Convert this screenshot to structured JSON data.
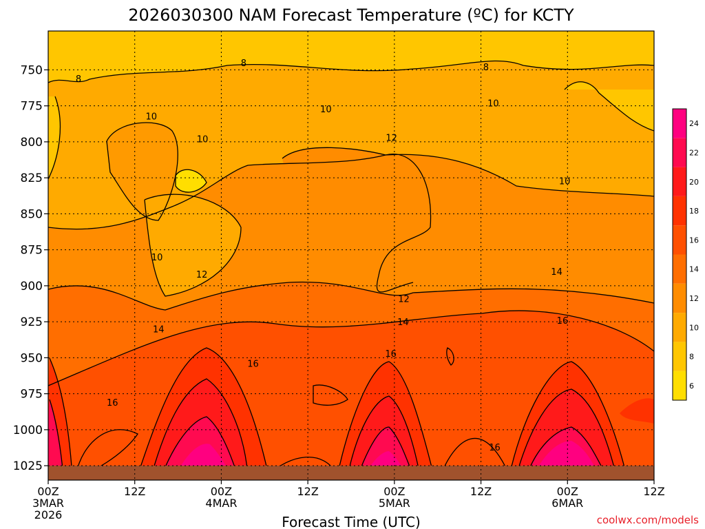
{
  "chart_data": {
    "type": "heatmap",
    "title": "2026030300 NAM Forecast Temperature (ºC) for KCTY",
    "xlabel": "Forecast Time (UTC)",
    "credit": "coolwx.com/models",
    "y_ticks": [
      "750",
      "775",
      "800",
      "825",
      "850",
      "875",
      "900",
      "925",
      "950",
      "975",
      "1000",
      "1025"
    ],
    "y_values": [
      750,
      775,
      800,
      825,
      850,
      875,
      900,
      925,
      950,
      975,
      1000,
      1025
    ],
    "ylim": [
      723,
      1035
    ],
    "x_ticks": [
      {
        "hour": 0,
        "label": "00Z",
        "date": "3MAR",
        "year": "2026"
      },
      {
        "hour": 12,
        "label": "12Z",
        "date": "",
        "year": ""
      },
      {
        "hour": 24,
        "label": "00Z",
        "date": "4MAR",
        "year": ""
      },
      {
        "hour": 36,
        "label": "12Z",
        "date": "",
        "year": ""
      },
      {
        "hour": 48,
        "label": "00Z",
        "date": "5MAR",
        "year": ""
      },
      {
        "hour": 60,
        "label": "12Z",
        "date": "",
        "year": ""
      },
      {
        "hour": 72,
        "label": "00Z",
        "date": "6MAR",
        "year": ""
      },
      {
        "hour": 84,
        "label": "12Z",
        "date": "",
        "year": ""
      }
    ],
    "xlim": [
      0,
      84
    ],
    "colorbar": {
      "labels": [
        6,
        8,
        10,
        12,
        14,
        16,
        18,
        20,
        22,
        24
      ],
      "colors": [
        "#ffde00",
        "#ffc600",
        "#ffaa00",
        "#ff8c00",
        "#ff6e00",
        "#ff5000",
        "#ff3200",
        "#ff1a1a",
        "#ff0a50",
        "#ff0080"
      ]
    },
    "contour_labels": [
      {
        "text": "8",
        "hour": 4.2,
        "p": 756
      },
      {
        "text": "8",
        "hour": 27.1,
        "p": 745
      },
      {
        "text": "8",
        "hour": 60.7,
        "p": 748
      },
      {
        "text": "10",
        "hour": 14.3,
        "p": 782
      },
      {
        "text": "10",
        "hour": 21.4,
        "p": 798
      },
      {
        "text": "10",
        "hour": 38.5,
        "p": 777
      },
      {
        "text": "10",
        "hour": 61.7,
        "p": 773
      },
      {
        "text": "10",
        "hour": 71.6,
        "p": 827
      },
      {
        "text": "10",
        "hour": 15.1,
        "p": 880
      },
      {
        "text": "12",
        "hour": 47.6,
        "p": 797
      },
      {
        "text": "12",
        "hour": 21.3,
        "p": 892
      },
      {
        "text": "12",
        "hour": 49.3,
        "p": 909
      },
      {
        "text": "14",
        "hour": 15.3,
        "p": 930
      },
      {
        "text": "14",
        "hour": 49.2,
        "p": 925
      },
      {
        "text": "14",
        "hour": 70.5,
        "p": 890
      },
      {
        "text": "16",
        "hour": 28.4,
        "p": 954
      },
      {
        "text": "16",
        "hour": 8.9,
        "p": 981
      },
      {
        "text": "16",
        "hour": 47.5,
        "p": 947
      },
      {
        "text": "16",
        "hour": 71.3,
        "p": 924
      },
      {
        "text": "16",
        "hour": 61.9,
        "p": 1012
      }
    ]
  }
}
